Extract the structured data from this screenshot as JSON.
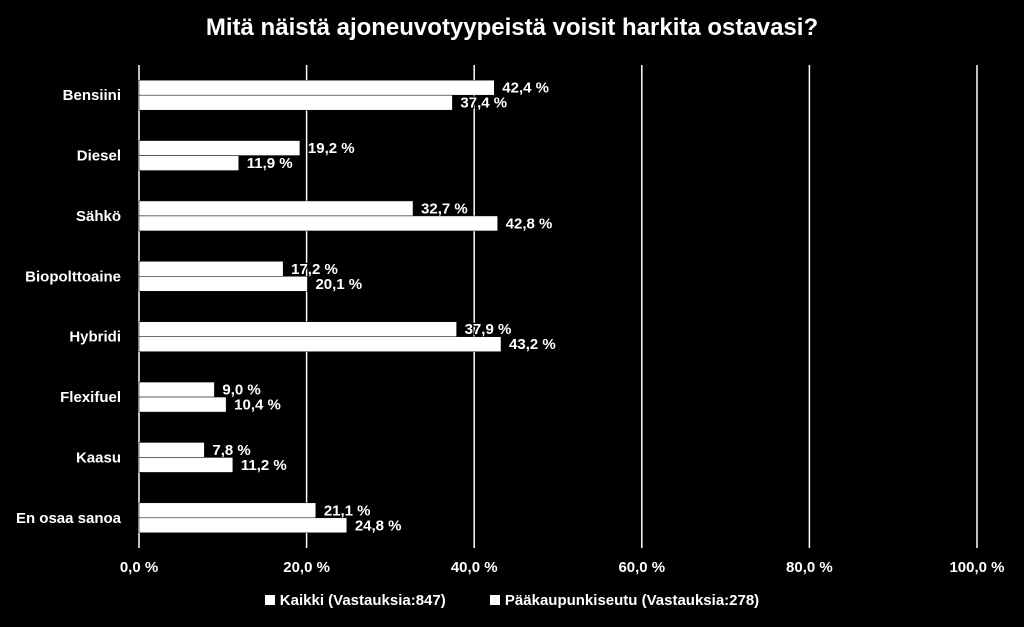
{
  "chart_data": {
    "type": "bar",
    "orientation": "horizontal",
    "title": "Mitä näistä ajoneuvotyypeistä voisit harkita ostavasi?",
    "categories": [
      "Bensiini",
      "Diesel",
      "Sähkö",
      "Biopolttoaine",
      "Hybridi",
      "Flexifuel",
      "Kaasu",
      "En osaa sanoa"
    ],
    "series": [
      {
        "name": "Kaikki (Vastauksia:847)",
        "values": [
          42.4,
          19.2,
          32.7,
          17.2,
          37.9,
          9.0,
          7.8,
          21.1
        ],
        "labels": [
          "42,4 %",
          "19,2 %",
          "32,7 %",
          "17,2 %",
          "37,9 %",
          "9,0 %",
          "7,8 %",
          "21,1 %"
        ]
      },
      {
        "name": "Pääkaupunkiseutu (Vastauksia:278)",
        "values": [
          37.4,
          11.9,
          42.8,
          20.1,
          43.2,
          10.4,
          11.2,
          24.8
        ],
        "labels": [
          "37,4 %",
          "11,9 %",
          "42,8 %",
          "20,1 %",
          "43,2 %",
          "10,4 %",
          "11,2 %",
          "24,8 %"
        ]
      }
    ],
    "xlim": [
      0,
      100
    ],
    "xticks": [
      0,
      20,
      40,
      60,
      80,
      100
    ],
    "xtick_labels": [
      "0,0 %",
      "20,0 %",
      "40,0 %",
      "60,0 %",
      "80,0 %",
      "100,0 %"
    ],
    "grid": true,
    "legend_position": "bottom",
    "colors": {
      "background": "#000000",
      "bars": "#ffffff",
      "gridlines": "#ffffff",
      "text": "#ffffff"
    }
  }
}
